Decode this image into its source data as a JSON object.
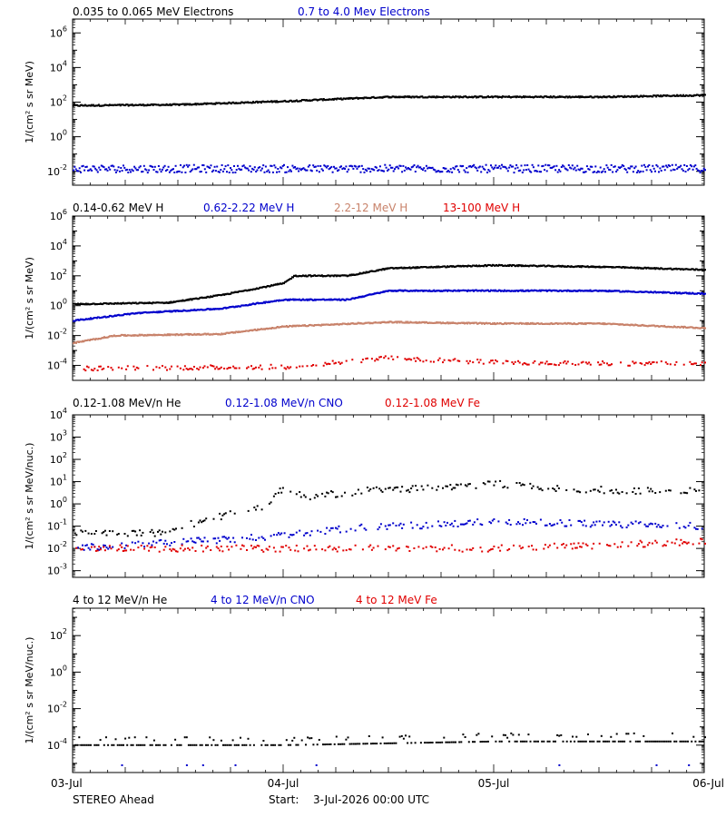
{
  "colors": {
    "black": "#000000",
    "blue": "#0000cc",
    "tan": "#c8826a",
    "red": "#e00000"
  },
  "x_ticks": [
    "03-Jul",
    "04-Jul",
    "05-Jul",
    "06-Jul"
  ],
  "footer": {
    "spacecraft": "STEREO Ahead",
    "start_label": "Start:",
    "start_value": "3-Jul-2026 00:00 UTC"
  },
  "chart_data": [
    {
      "type": "scatter",
      "ylabel": "1/(cm² s sr MeV)",
      "yscale": "log",
      "ylim_exp": [
        -2.8,
        6.8
      ],
      "tick_exps": [
        -2,
        0,
        2,
        4,
        6
      ],
      "xlim_days": [
        0,
        3
      ],
      "series": [
        {
          "name": "0.035 to 0.065 MeV Electrons",
          "color": "black",
          "style": "dense",
          "x_days": [
            0,
            0.5,
            1.0,
            1.5,
            2.0,
            2.5,
            3.0
          ],
          "log10_y": [
            1.8,
            1.85,
            2.05,
            2.3,
            2.3,
            2.3,
            2.4
          ]
        },
        {
          "name": "0.7 to 4.0 Mev Electrons",
          "color": "blue",
          "style": "noisy",
          "x_days": [
            0,
            1.0,
            2.0,
            3.0
          ],
          "log10_y": [
            -1.85,
            -1.85,
            -1.85,
            -1.85
          ]
        }
      ]
    },
    {
      "type": "scatter",
      "ylabel": "1/(cm² s sr MeV)",
      "yscale": "log",
      "ylim_exp": [
        -5,
        6
      ],
      "tick_exps": [
        -4,
        -2,
        0,
        2,
        4,
        6
      ],
      "xlim_days": [
        0,
        3
      ],
      "series": [
        {
          "name": "0.14-0.62 MeV H",
          "color": "black",
          "style": "dense",
          "x_days": [
            0,
            0.45,
            0.7,
            1.0,
            1.05,
            1.3,
            1.5,
            2.0,
            2.5,
            3.0
          ],
          "log10_y": [
            0.1,
            0.2,
            0.7,
            1.5,
            2.0,
            2.0,
            2.5,
            2.7,
            2.6,
            2.4
          ]
        },
        {
          "name": "0.62-2.22 MeV H",
          "color": "blue",
          "style": "dense",
          "x_days": [
            0,
            0.3,
            0.7,
            1.0,
            1.3,
            1.5,
            2.0,
            2.5,
            3.0
          ],
          "log10_y": [
            -1.0,
            -0.5,
            -0.2,
            0.4,
            0.4,
            1.0,
            1.0,
            1.0,
            0.8
          ]
        },
        {
          "name": "2.2-12 MeV H",
          "color": "tan",
          "style": "dense",
          "x_days": [
            0,
            0.2,
            0.7,
            1.0,
            1.5,
            2.0,
            2.5,
            3.0
          ],
          "log10_y": [
            -2.5,
            -2.0,
            -1.9,
            -1.4,
            -1.1,
            -1.2,
            -1.2,
            -1.5
          ]
        },
        {
          "name": "13-100 MeV H",
          "color": "red",
          "style": "sparse",
          "x_days": [
            0,
            1.0,
            1.5,
            2.0,
            3.0
          ],
          "log10_y": [
            -4.2,
            -4.1,
            -3.5,
            -3.8,
            -3.9
          ]
        }
      ]
    },
    {
      "type": "scatter",
      "ylabel": "1/(cm² s sr MeV/nuc.)",
      "yscale": "log",
      "ylim_exp": [
        -3.3,
        4
      ],
      "tick_exps": [
        -3,
        -2,
        -1,
        0,
        1,
        2,
        3,
        4
      ],
      "xlim_days": [
        0,
        3
      ],
      "series": [
        {
          "name": "0.12-1.08 MeV/n He",
          "color": "black",
          "style": "sparse",
          "x_days": [
            0,
            0.4,
            0.6,
            0.9,
            1.0,
            1.1,
            1.4,
            1.7,
            2.0,
            2.3,
            2.6,
            3.0
          ],
          "log10_y": [
            -1.3,
            -1.3,
            -0.8,
            -0.1,
            0.7,
            0.3,
            0.6,
            0.7,
            0.9,
            0.7,
            0.6,
            0.6
          ]
        },
        {
          "name": "0.12-1.08 MeV/n CNO",
          "color": "blue",
          "style": "sparse",
          "x_days": [
            0,
            0.9,
            1.3,
            1.8,
            2.0,
            2.5,
            3.0
          ],
          "log10_y": [
            -2.0,
            -1.5,
            -1.1,
            -0.9,
            -0.8,
            -0.9,
            -1.0
          ]
        },
        {
          "name": "0.12-1.08 MeV Fe",
          "color": "red",
          "style": "sparse",
          "x_days": [
            0,
            1.0,
            2.0,
            3.0
          ],
          "log10_y": [
            -2.0,
            -2.0,
            -2.0,
            -1.7
          ]
        }
      ]
    },
    {
      "type": "scatter",
      "ylabel": "1/(cm² s sr MeV/nuc.)",
      "yscale": "log",
      "ylim_exp": [
        -5.5,
        3.5
      ],
      "tick_exps": [
        -4,
        -2,
        0,
        2
      ],
      "xlim_days": [
        0,
        3
      ],
      "series": [
        {
          "name": "4 to 12 MeV/n He",
          "color": "black",
          "style": "floor",
          "x_days": [
            0,
            1.0,
            2.0,
            3.0
          ],
          "log10_y": [
            -4.0,
            -4.0,
            -3.8,
            -3.8
          ]
        },
        {
          "name": "4 to 12 MeV/n CNO",
          "color": "blue",
          "style": "rare",
          "x_days": [
            0,
            3.0
          ],
          "log10_y": [
            -5.1,
            -5.1
          ]
        },
        {
          "name": "4 to 12 MeV Fe",
          "color": "red",
          "style": "none",
          "x_days": [],
          "log10_y": []
        }
      ]
    }
  ]
}
